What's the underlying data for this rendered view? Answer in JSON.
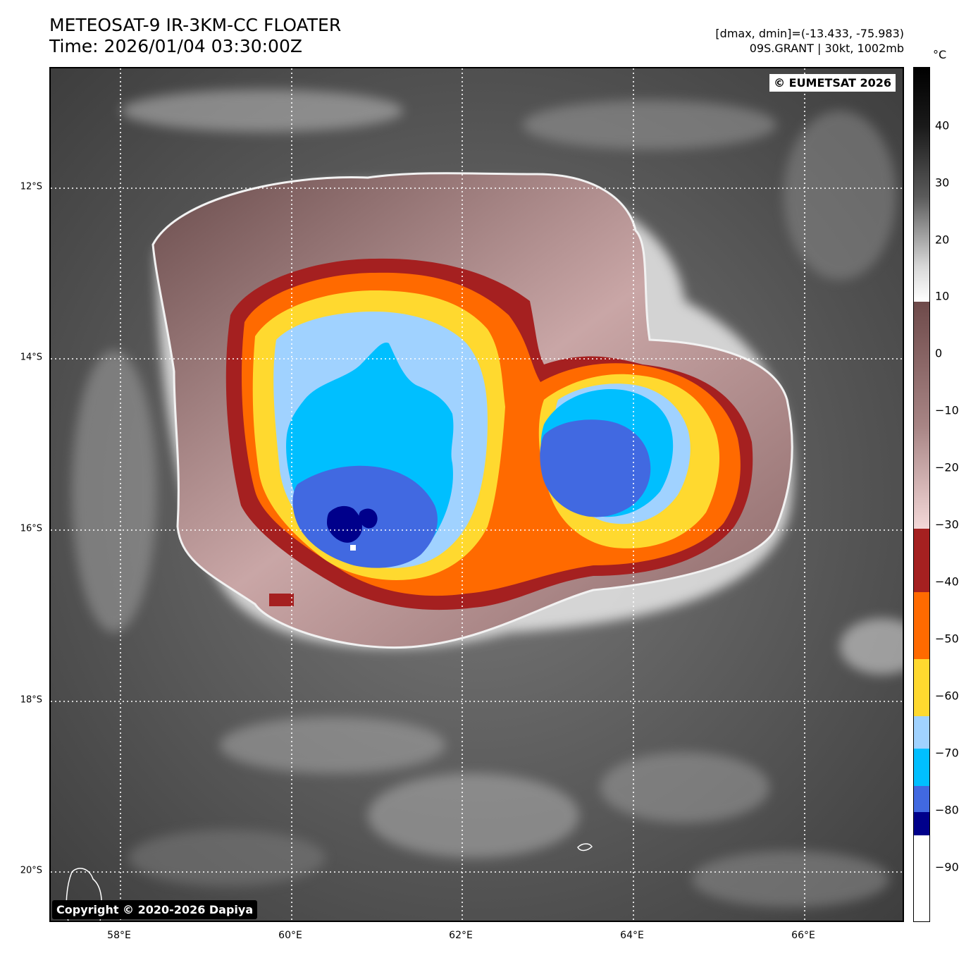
{
  "header": {
    "title_line1": "METEOSAT-9 IR-3KM-CC FLOATER",
    "title_line2": "Time: 2026/01/04 03:30:00Z",
    "meta_line1": "[dmax, dmin]=(-13.433, -75.983)",
    "meta_line2": "09S.GRANT | 30kt, 1002mb"
  },
  "map": {
    "watermark": "© EUMETSAT 2026",
    "copyright": "Copyright © 2020-2026 Dapiya",
    "lat_labels": [
      "12°S",
      "14°S",
      "16°S",
      "18°S",
      "20°S"
    ],
    "lon_labels": [
      "58°E",
      "60°E",
      "62°E",
      "64°E",
      "66°E"
    ]
  },
  "colorbar": {
    "unit": "°C",
    "ticks": [
      "40",
      "30",
      "20",
      "10",
      "0",
      "−10",
      "−20",
      "−30",
      "−40",
      "−50",
      "−60",
      "−70",
      "−80",
      "−90"
    ],
    "colors": {
      "dark_blue": "#00008b",
      "royal_blue": "#4169e1",
      "deep_sky": "#00bfff",
      "light_sky": "#a0d2ff",
      "yellow": "#ffd92f",
      "orange": "#ff6a00",
      "dark_red": "#a52020",
      "pink_brown": "#6e4a4a"
    }
  }
}
